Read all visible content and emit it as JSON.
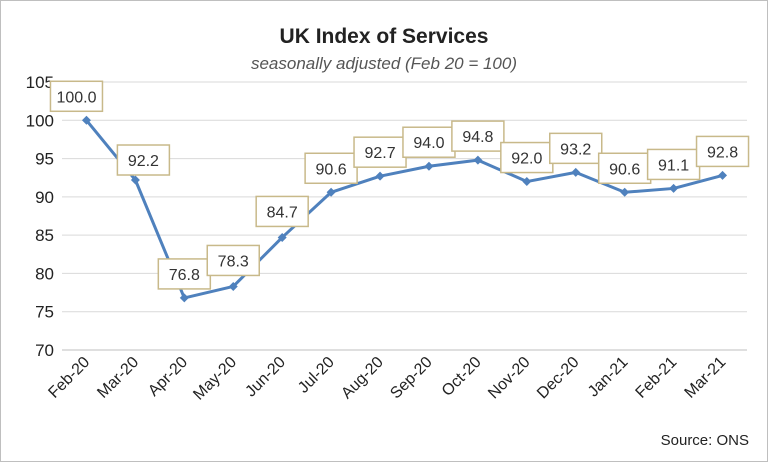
{
  "chart_data": {
    "type": "line",
    "title": "UK Index of Services",
    "subtitle": "seasonally adjusted (Feb 20 = 100)",
    "source": "Source: ONS",
    "categories": [
      "Feb-20",
      "Mar-20",
      "Apr-20",
      "May-20",
      "Jun-20",
      "Jul-20",
      "Aug-20",
      "Sep-20",
      "Oct-20",
      "Nov-20",
      "Dec-20",
      "Jan-21",
      "Feb-21",
      "Mar-21"
    ],
    "values": [
      100.0,
      92.2,
      76.8,
      78.3,
      84.7,
      90.6,
      92.7,
      94.0,
      94.8,
      92.0,
      93.2,
      90.6,
      91.1,
      92.8
    ],
    "data_labels": [
      "100.0",
      "92.2",
      "76.8",
      "78.3",
      "84.7",
      "90.6",
      "92.7",
      "94.0",
      "94.8",
      "92.0",
      "93.2",
      "90.6",
      "91.1",
      "92.8"
    ],
    "ylim": [
      70,
      105
    ],
    "yticks": [
      70,
      75,
      80,
      85,
      90,
      95,
      100,
      105
    ],
    "grid": true,
    "legend": "none",
    "line_color": "#4f81bd",
    "label_border_color": "#c8b98a"
  }
}
